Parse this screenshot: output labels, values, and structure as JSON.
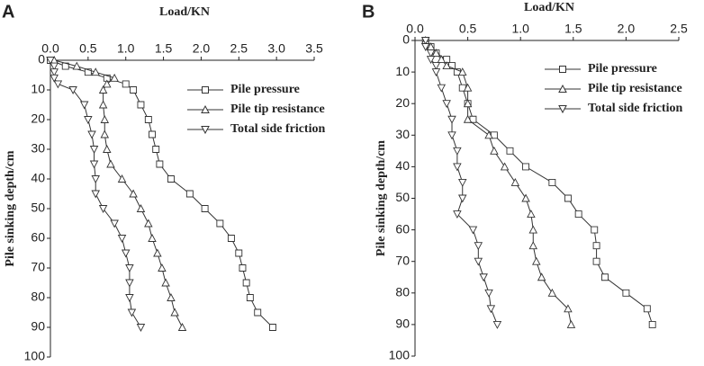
{
  "chart_data": [
    {
      "type": "line",
      "panel_label": "A",
      "x_label": "Load/KN",
      "y_label": "Pile sinking depth/cm",
      "xlim": [
        0,
        3.5
      ],
      "xticks": [
        {
          "value": 0,
          "label": "0.0"
        },
        0.5,
        {
          "value": 1,
          "label": "1.0"
        },
        1.5,
        {
          "value": 2,
          "label": "2.0"
        },
        2.5,
        {
          "value": 3,
          "label": "3.0"
        },
        3.5
      ],
      "ylim": [
        0,
        100
      ],
      "yticks": [
        0,
        10,
        20,
        30,
        40,
        50,
        60,
        70,
        80,
        90,
        100
      ],
      "y_inverted": true,
      "series": [
        {
          "name": "Pile pressure",
          "marker": "square",
          "color": "#333333",
          "y": [
            0,
            2,
            4,
            6,
            8,
            10,
            15,
            20,
            25,
            30,
            35,
            40,
            45,
            50,
            55,
            60,
            65,
            70,
            75,
            80,
            85,
            90
          ],
          "x": [
            0,
            0.2,
            0.5,
            0.75,
            1.0,
            1.1,
            1.2,
            1.3,
            1.35,
            1.4,
            1.45,
            1.6,
            1.85,
            2.05,
            2.25,
            2.4,
            2.5,
            2.55,
            2.6,
            2.65,
            2.75,
            2.95
          ]
        },
        {
          "name": "Pile tip resistance",
          "marker": "triangle-up",
          "color": "#333333",
          "y": [
            0,
            2,
            4,
            6,
            8,
            10,
            15,
            20,
            25,
            30,
            35,
            40,
            45,
            50,
            55,
            60,
            65,
            70,
            75,
            80,
            85,
            90
          ],
          "x": [
            0.05,
            0.35,
            0.6,
            0.85,
            0.75,
            0.7,
            0.7,
            0.72,
            0.72,
            0.75,
            0.8,
            0.95,
            1.1,
            1.2,
            1.3,
            1.35,
            1.42,
            1.48,
            1.53,
            1.6,
            1.65,
            1.75
          ]
        },
        {
          "name": "Total side friction",
          "marker": "triangle-down",
          "color": "#333333",
          "y": [
            0,
            2,
            4,
            6,
            8,
            10,
            15,
            20,
            25,
            30,
            35,
            40,
            45,
            50,
            55,
            60,
            65,
            70,
            75,
            80,
            85,
            90
          ],
          "x": [
            0,
            0.05,
            0.05,
            0.05,
            0.1,
            0.3,
            0.45,
            0.5,
            0.55,
            0.58,
            0.58,
            0.6,
            0.6,
            0.7,
            0.85,
            0.95,
            1.0,
            1.05,
            1.05,
            1.05,
            1.08,
            1.2
          ]
        }
      ]
    },
    {
      "type": "line",
      "panel_label": "B",
      "x_label": "Load/KN",
      "y_label": "Pile sinking depth/cm",
      "xlim": [
        0,
        2.5
      ],
      "xticks": [
        {
          "value": 0,
          "label": "0.0"
        },
        0.5,
        {
          "value": 1,
          "label": "1.0"
        },
        1.5,
        {
          "value": 2,
          "label": "2.0"
        },
        2.5
      ],
      "ylim": [
        0,
        100
      ],
      "yticks": [
        0,
        10,
        20,
        30,
        40,
        50,
        60,
        70,
        80,
        90,
        100
      ],
      "y_inverted": true,
      "series": [
        {
          "name": "Pile pressure",
          "marker": "square",
          "color": "#333333",
          "y": [
            0,
            2,
            4,
            6,
            8,
            10,
            15,
            20,
            25,
            30,
            35,
            40,
            45,
            50,
            55,
            60,
            65,
            70,
            75,
            80,
            85,
            90
          ],
          "x": [
            0.1,
            0.15,
            0.2,
            0.3,
            0.35,
            0.4,
            0.45,
            0.5,
            0.55,
            0.75,
            0.9,
            1.05,
            1.3,
            1.45,
            1.55,
            1.7,
            1.72,
            1.72,
            1.8,
            2.0,
            2.2,
            2.25
          ]
        },
        {
          "name": "Pile tip resistance",
          "marker": "triangle-up",
          "color": "#333333",
          "y": [
            0,
            2,
            4,
            6,
            8,
            10,
            15,
            20,
            25,
            30,
            35,
            40,
            45,
            50,
            55,
            60,
            65,
            70,
            75,
            80,
            85,
            90
          ],
          "x": [
            0.1,
            0.15,
            0.2,
            0.25,
            0.3,
            0.45,
            0.5,
            0.5,
            0.5,
            0.7,
            0.75,
            0.85,
            0.95,
            1.05,
            1.1,
            1.12,
            1.12,
            1.15,
            1.2,
            1.3,
            1.45,
            1.48
          ]
        },
        {
          "name": "Total side friction",
          "marker": "triangle-down",
          "color": "#333333",
          "y": [
            0,
            2,
            4,
            6,
            8,
            10,
            15,
            20,
            25,
            30,
            35,
            40,
            45,
            50,
            55,
            60,
            65,
            70,
            75,
            80,
            85,
            90
          ],
          "x": [
            0.1,
            0.1,
            0.15,
            0.15,
            0.2,
            0.2,
            0.25,
            0.3,
            0.35,
            0.35,
            0.4,
            0.4,
            0.45,
            0.45,
            0.4,
            0.55,
            0.6,
            0.6,
            0.65,
            0.7,
            0.72,
            0.78
          ]
        }
      ]
    }
  ]
}
